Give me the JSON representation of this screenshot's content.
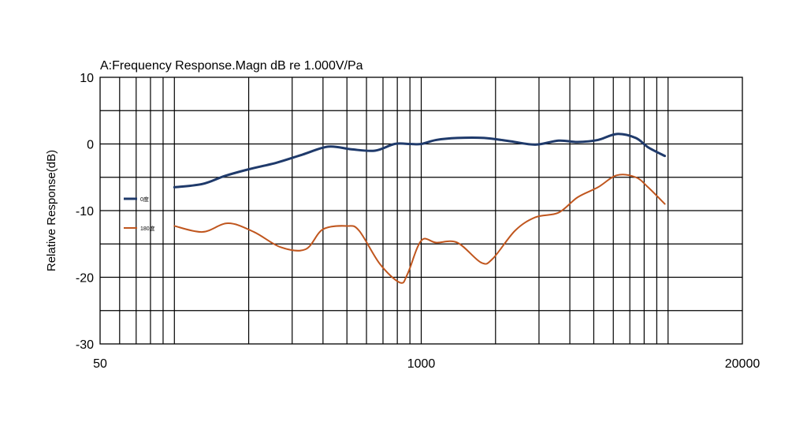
{
  "chart_data": {
    "type": "line",
    "title": "A:Frequency Response.Magn dB re 1.000V/Pa",
    "xlabel": "",
    "ylabel": "Relative Response(dB)",
    "xscale": "log",
    "xlim": [
      50,
      20000
    ],
    "ylim": [
      -30,
      10
    ],
    "x_ticks": [
      {
        "value": 50,
        "label": "50"
      },
      {
        "value": 1000,
        "label": "1000"
      },
      {
        "value": 20000,
        "label": "20000"
      }
    ],
    "y_ticks": [
      {
        "value": 10,
        "label": "10"
      },
      {
        "value": 0,
        "label": "0"
      },
      {
        "value": -10,
        "label": "-10"
      },
      {
        "value": -20,
        "label": "-20"
      },
      {
        "value": -30,
        "label": "-30"
      }
    ],
    "grid": true,
    "legend": "left",
    "series": [
      {
        "name": "0度",
        "color": "#1f3a6b",
        "x": [
          100,
          130,
          160,
          200,
          260,
          330,
          420,
          520,
          650,
          780,
          900,
          1000,
          1150,
          1400,
          1800,
          2300,
          2900,
          3600,
          4300,
          5200,
          6200,
          7400,
          8300,
          9700
        ],
        "y": [
          -6.5,
          -6.0,
          -4.8,
          -3.8,
          -2.8,
          -1.6,
          -0.4,
          -0.8,
          -1.0,
          0.0,
          0.0,
          0.0,
          0.6,
          0.9,
          0.9,
          0.4,
          -0.1,
          0.5,
          0.3,
          0.6,
          1.5,
          0.9,
          -0.5,
          -1.8
        ]
      },
      {
        "name": "180度",
        "color": "#c0561e",
        "x": [
          100,
          130,
          165,
          210,
          270,
          340,
          400,
          500,
          560,
          680,
          820,
          880,
          1000,
          1150,
          1400,
          1750,
          1950,
          2400,
          2900,
          3600,
          4300,
          5200,
          6200,
          7400,
          8300,
          9700
        ],
        "y": [
          -12.3,
          -13.2,
          -11.9,
          -13.2,
          -15.5,
          -15.8,
          -12.8,
          -12.3,
          -13.0,
          -18.0,
          -20.8,
          -19.5,
          -14.5,
          -14.8,
          -14.8,
          -17.8,
          -17.2,
          -13.0,
          -11.0,
          -10.3,
          -8.0,
          -6.5,
          -4.7,
          -5.0,
          -6.5,
          -9.0
        ]
      }
    ]
  }
}
